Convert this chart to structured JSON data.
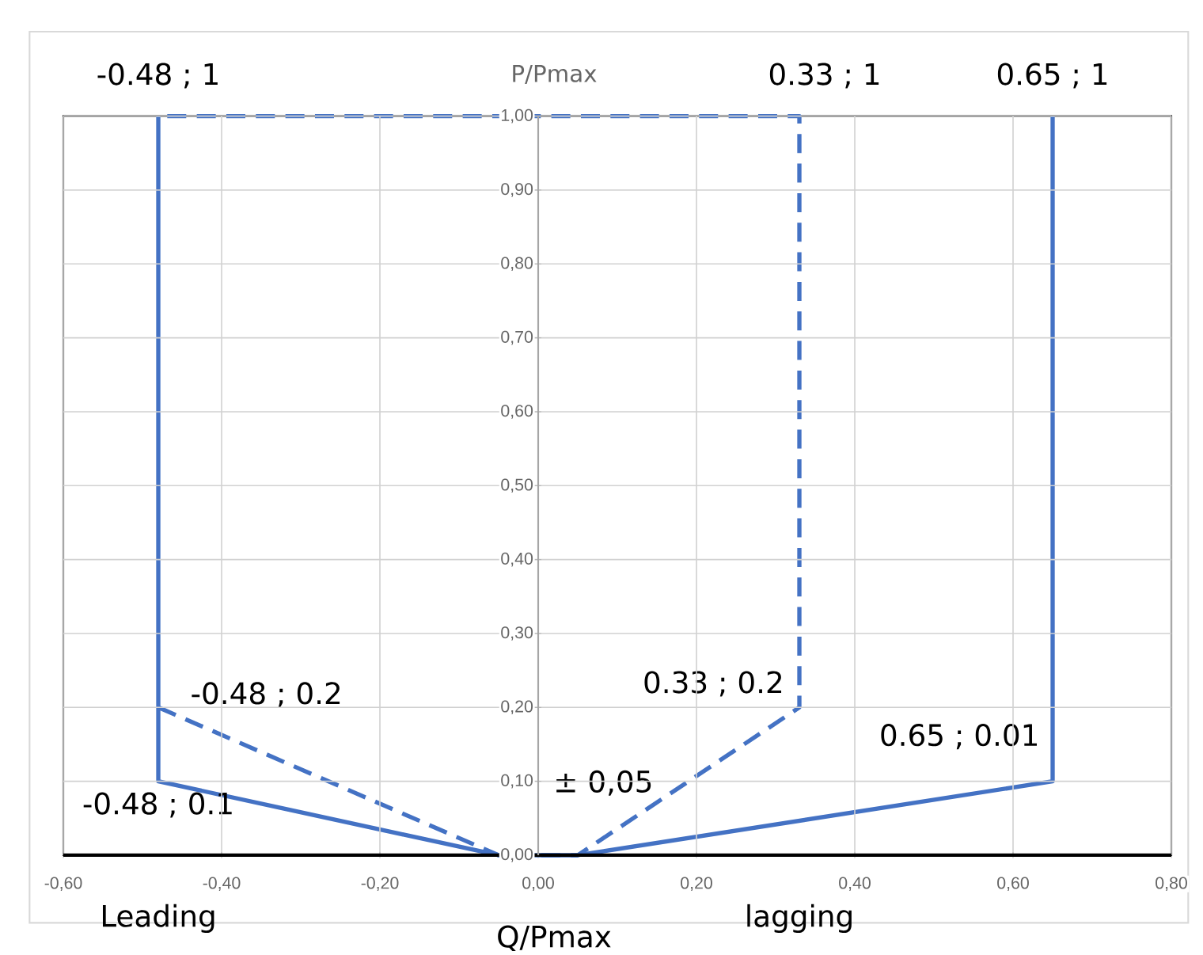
{
  "chart_data": {
    "type": "line",
    "xlabel": "Q/Pmax",
    "ylabel": "P/Pmax",
    "xlim": [
      -0.6,
      0.8
    ],
    "ylim": [
      0,
      1
    ],
    "xticks": [
      {
        "value": -0.6,
        "label": "-0,60"
      },
      {
        "value": -0.4,
        "label": "-0,40"
      },
      {
        "value": -0.2,
        "label": "-0,20"
      },
      {
        "value": 0,
        "label": "0,00"
      },
      {
        "value": 0.2,
        "label": "0,20"
      },
      {
        "value": 0.4,
        "label": "0,40"
      },
      {
        "value": 0.6,
        "label": "0,60"
      },
      {
        "value": 0.8,
        "label": "0,80"
      }
    ],
    "yticks": [
      {
        "value": 0,
        "label": "0,00"
      },
      {
        "value": 0.1,
        "label": "0,10"
      },
      {
        "value": 0.2,
        "label": "0,20"
      },
      {
        "value": 0.3,
        "label": "0,30"
      },
      {
        "value": 0.4,
        "label": "0,40"
      },
      {
        "value": 0.5,
        "label": "0,50"
      },
      {
        "value": 0.6,
        "label": "0,60"
      },
      {
        "value": 0.7,
        "label": "0,70"
      },
      {
        "value": 0.8,
        "label": "0,80"
      },
      {
        "value": 0.9,
        "label": "0,90"
      },
      {
        "value": 1,
        "label": "1,00"
      }
    ],
    "grid": true,
    "series": [
      {
        "color": "#4472c4",
        "line_style": "solid",
        "x": [
          -0.48,
          -0.48,
          -0.05,
          0.05,
          0.65,
          0.65
        ],
        "values": [
          1,
          0.1,
          0,
          0,
          0.1,
          1
        ]
      },
      {
        "color": "#4472c4",
        "line_style": "dashed",
        "x": [
          -0.48,
          -0.05,
          0.05,
          0.33,
          0.33,
          -0.48
        ],
        "values": [
          0.2,
          0,
          0,
          0.2,
          1,
          1
        ]
      }
    ],
    "annotations": [
      {
        "text": "-0.48 ; 1",
        "x": -0.48,
        "y": 1
      },
      {
        "text": "0.33 ; 1",
        "x": 0.33,
        "y": 1
      },
      {
        "text": "0.65 ; 1",
        "x": 0.65,
        "y": 1
      },
      {
        "text": "-0.48 ; 0.2",
        "x": -0.48,
        "y": 0.2
      },
      {
        "text": "-0.48 ; 0.1",
        "x": -0.48,
        "y": 0.1
      },
      {
        "text": "0.33 ; 0.2",
        "x": 0.33,
        "y": 0.2
      },
      {
        "text": "0.65 ; 0.01",
        "x": 0.65,
        "y": 0.1
      },
      {
        "text": "± 0,05",
        "x": 0,
        "y": 0
      },
      "Leading",
      "lagging"
    ]
  }
}
